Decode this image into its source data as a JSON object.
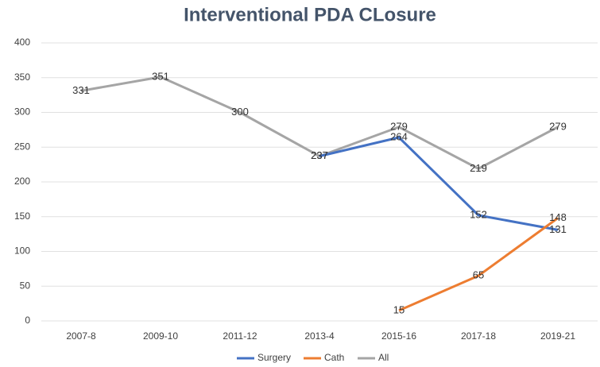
{
  "chart_data": {
    "type": "line",
    "title": "Interventional PDA CLosure",
    "categories": [
      "2007-8",
      "2009-10",
      "2011-12",
      "2013-4",
      "2015-16",
      "2017-18",
      "2019-21"
    ],
    "series": [
      {
        "name": "Surgery",
        "color": "#4472c4",
        "values": [
          null,
          null,
          null,
          237,
          264,
          152,
          131
        ]
      },
      {
        "name": "Cath",
        "color": "#ed7d31",
        "values": [
          null,
          null,
          null,
          null,
          15,
          65,
          148
        ]
      },
      {
        "name": "All",
        "color": "#a5a5a5",
        "values": [
          331,
          351,
          300,
          237,
          279,
          219,
          279
        ]
      }
    ],
    "ylim": [
      0,
      400
    ],
    "yticks": [
      0,
      50,
      100,
      150,
      200,
      250,
      300,
      350,
      400
    ],
    "grid": true,
    "legend": "bottom"
  }
}
